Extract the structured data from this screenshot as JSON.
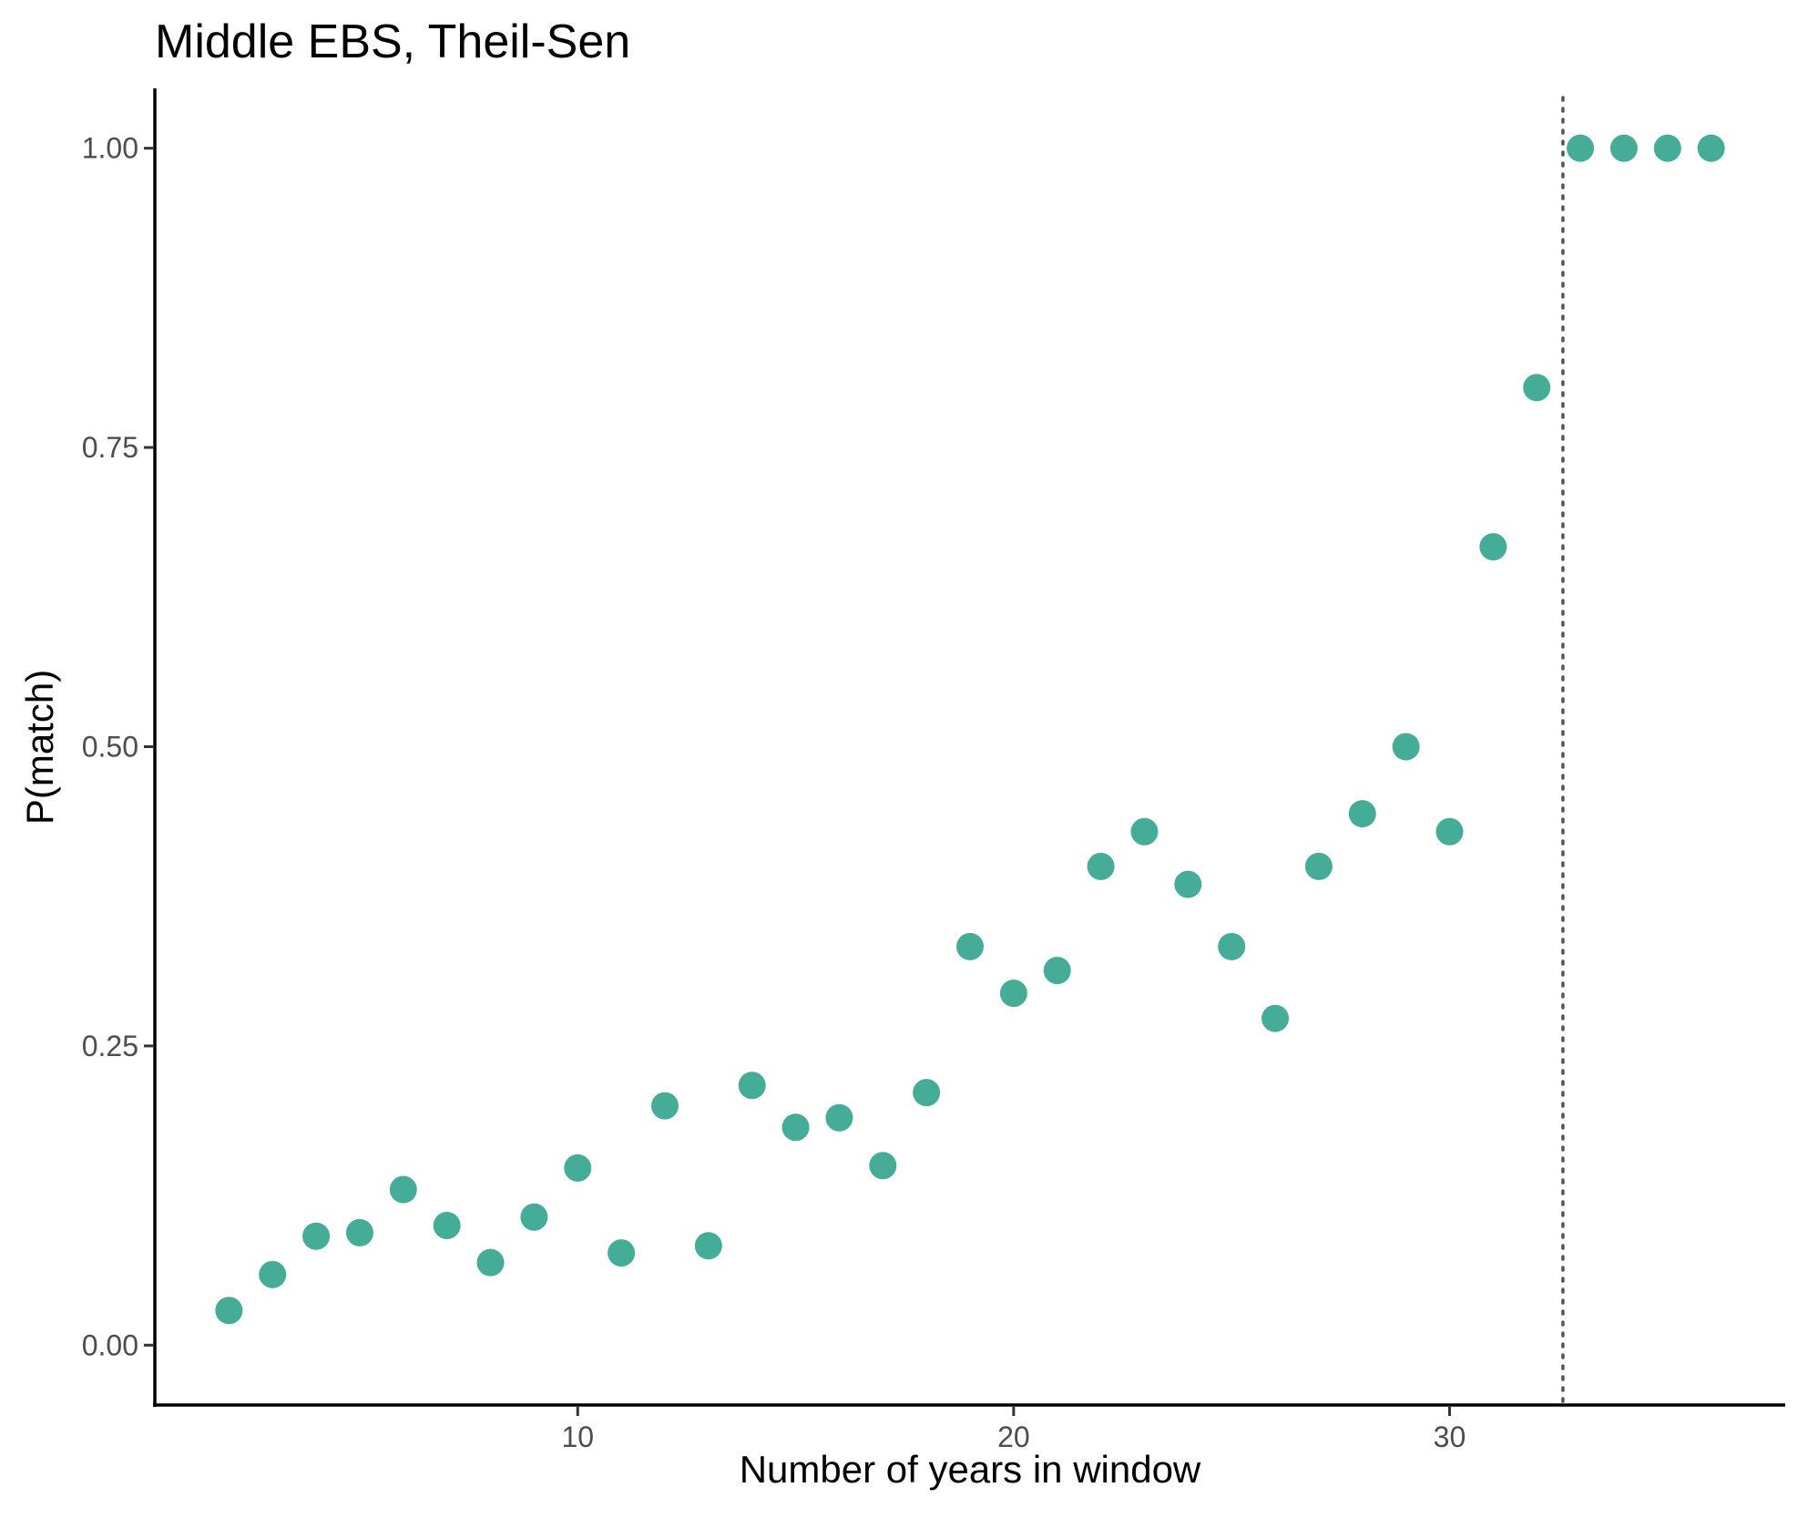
{
  "chart_data": {
    "type": "scatter",
    "title": "Middle EBS, Theil-Sen",
    "xlabel": "Number of years in window",
    "ylabel": "P(match)",
    "xlim": [
      0.3,
      37.7
    ],
    "ylim": [
      -0.05,
      1.05
    ],
    "x_ticks": [
      10,
      20,
      30
    ],
    "x_tick_labels": [
      "10",
      "20",
      "30"
    ],
    "y_ticks": [
      0,
      0.25,
      0.5,
      0.75,
      1.0
    ],
    "y_tick_labels": [
      "0.00",
      "0.25",
      "0.50",
      "0.75",
      "1.00"
    ],
    "grid": false,
    "reference_line": {
      "orientation": "vertical",
      "x": 32.6,
      "style": "dotted"
    },
    "point_color": "#45AC98",
    "line_color": "#555555",
    "series": [
      {
        "x": [
          2,
          3,
          4,
          5,
          6,
          7,
          8,
          9,
          10,
          11,
          12,
          13,
          14,
          15,
          16,
          17,
          18,
          19,
          20,
          21,
          22,
          23,
          24,
          25,
          26,
          27,
          28,
          29,
          30,
          31,
          32,
          33,
          34,
          35,
          36
        ],
        "y": [
          0.029,
          0.059,
          0.091,
          0.094,
          0.13,
          0.1,
          0.069,
          0.107,
          0.148,
          0.077,
          0.2,
          0.083,
          0.217,
          0.182,
          0.19,
          0.15,
          0.211,
          0.333,
          0.294,
          0.313,
          0.4,
          0.429,
          0.385,
          0.333,
          0.273,
          0.4,
          0.444,
          0.5,
          0.429,
          0.667,
          0.8,
          1.0,
          1.0,
          1.0,
          1.0
        ]
      }
    ]
  }
}
